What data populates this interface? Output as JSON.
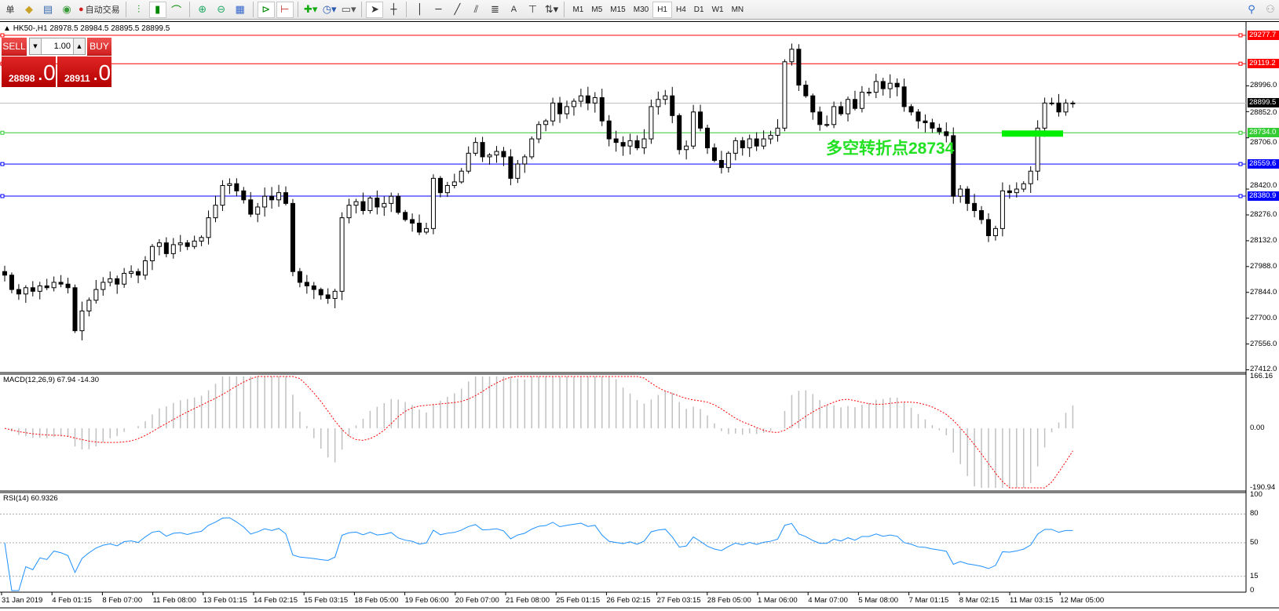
{
  "toolbar": {
    "items": [
      {
        "name": "new-order-icon",
        "label": "单"
      },
      {
        "name": "market-watch-icon",
        "glyph": "◆"
      },
      {
        "name": "data-window-icon",
        "glyph": "▤"
      },
      {
        "name": "signals-icon",
        "glyph": "◉"
      }
    ],
    "autotrade_label": "自动交易",
    "timeframes": [
      "M1",
      "M5",
      "M15",
      "M30",
      "H1",
      "H4",
      "D1",
      "W1",
      "MN"
    ],
    "active_timeframe": "H1"
  },
  "chart": {
    "symbol_header": "HK50-,H1  28978.5 28984.5 28895.5 28899.5",
    "sell_label": "SELL",
    "buy_label": "BUY",
    "lot": "1.00",
    "sell_price_small": "28898",
    "sell_price_big": ".0",
    "buy_price_small": "28911",
    "buy_price_big": ".0",
    "annotation": "多空转折点",
    "annotation_value": "28734",
    "colors": {
      "resistance": "#ff0000",
      "pivot": "#33cc33",
      "support": "#0000ff",
      "current": "#000000",
      "macd_hist": "#c0c0c0",
      "macd_signal": "#ff0000",
      "rsi": "#1e90ff"
    }
  },
  "chart_data": [
    {
      "type": "candlestick",
      "title": "HK50-,H1",
      "x_labels": [
        "31 Jan 2019",
        "4 Feb 01:15",
        "8 Feb 07:00",
        "11 Feb 08:00",
        "13 Feb 01:15",
        "14 Feb 02:15",
        "15 Feb 03:15",
        "18 Feb 05:00",
        "19 Feb 06:00",
        "20 Feb 07:00",
        "21 Feb 08:00",
        "25 Feb 01:15",
        "26 Feb 02:15",
        "27 Feb 03:15",
        "28 Feb 05:00",
        "1 Mar 06:00",
        "4 Mar 07:00",
        "5 Mar 08:00",
        "7 Mar 01:15",
        "8 Mar 02:15",
        "11 Mar 03:15",
        "12 Mar 05:00"
      ],
      "ylim": [
        27412,
        29277.7
      ],
      "y_ticks": [
        "28996.0",
        "28852.0",
        "28706.0",
        "28420.0",
        "28276.0",
        "28132.0",
        "27988.0",
        "27844.0",
        "27700.0",
        "27556.0",
        "27412.0"
      ],
      "y_tick_values": [
        28996,
        28852,
        28706,
        28420,
        28276,
        28132,
        27988,
        27844,
        27700,
        27556,
        27412
      ],
      "hlines": [
        {
          "value": 29277.7,
          "label": "29277.7",
          "kind": "resistance"
        },
        {
          "value": 29119.2,
          "label": "29119.2",
          "kind": "resistance"
        },
        {
          "value": 28899.5,
          "label": "28899.5",
          "kind": "current"
        },
        {
          "value": 28734.0,
          "label": "28734.0",
          "kind": "pivot"
        },
        {
          "value": 28559.6,
          "label": "28559.6",
          "kind": "support"
        },
        {
          "value": 28380.9,
          "label": "28380.9",
          "kind": "support"
        }
      ],
      "close": [
        27940,
        27860,
        27835,
        27870,
        27850,
        27880,
        27870,
        27900,
        27890,
        27870,
        27630,
        27740,
        27800,
        27860,
        27900,
        27920,
        27890,
        27950,
        27960,
        27940,
        28020,
        28100,
        28120,
        28060,
        28110,
        28120,
        28100,
        28130,
        28150,
        28260,
        28330,
        28440,
        28450,
        28410,
        28360,
        28280,
        28320,
        28380,
        28360,
        28400,
        28340,
        27960,
        27900,
        27880,
        27860,
        27830,
        27810,
        27850,
        28260,
        28330,
        28350,
        28300,
        28370,
        28320,
        28340,
        28380,
        28290,
        28250,
        28230,
        28180,
        28200,
        28480,
        28400,
        28440,
        28460,
        28520,
        28620,
        28680,
        28600,
        28610,
        28630,
        28600,
        28480,
        28560,
        28600,
        28700,
        28780,
        28800,
        28900,
        28840,
        28880,
        28910,
        28940,
        28900,
        28930,
        28800,
        28700,
        28680,
        28660,
        28690,
        28650,
        28700,
        28880,
        28920,
        28940,
        28830,
        28640,
        28660,
        28850,
        28760,
        28650,
        28580,
        28540,
        28620,
        28690,
        28650,
        28700,
        28660,
        28700,
        28720,
        28760,
        29130,
        29200,
        29000,
        28940,
        28850,
        28780,
        28780,
        28880,
        28840,
        28920,
        28870,
        28960,
        28960,
        29020,
        28980,
        29010,
        28990,
        28880,
        28850,
        28800,
        28790,
        28760,
        28740,
        28718,
        28380,
        28420,
        28340,
        28300,
        28250,
        28160,
        28200,
        28410,
        28400,
        28420,
        28450,
        28520,
        28760,
        28900,
        28900,
        28850,
        28900,
        28899.5
      ]
    },
    {
      "type": "macd",
      "label": "MACD(12,26,9) 67.94 -14.30",
      "ylim": [
        -190.94,
        166.16
      ],
      "y_ticks": [
        "166.16",
        "0.00",
        "-190.94"
      ]
    },
    {
      "type": "rsi",
      "label": "RSI(14) 60.9326",
      "ylim": [
        0,
        100
      ],
      "levels": [
        15,
        50,
        80
      ],
      "y_ticks": [
        "100",
        "80",
        "50",
        "15",
        "0"
      ]
    }
  ]
}
